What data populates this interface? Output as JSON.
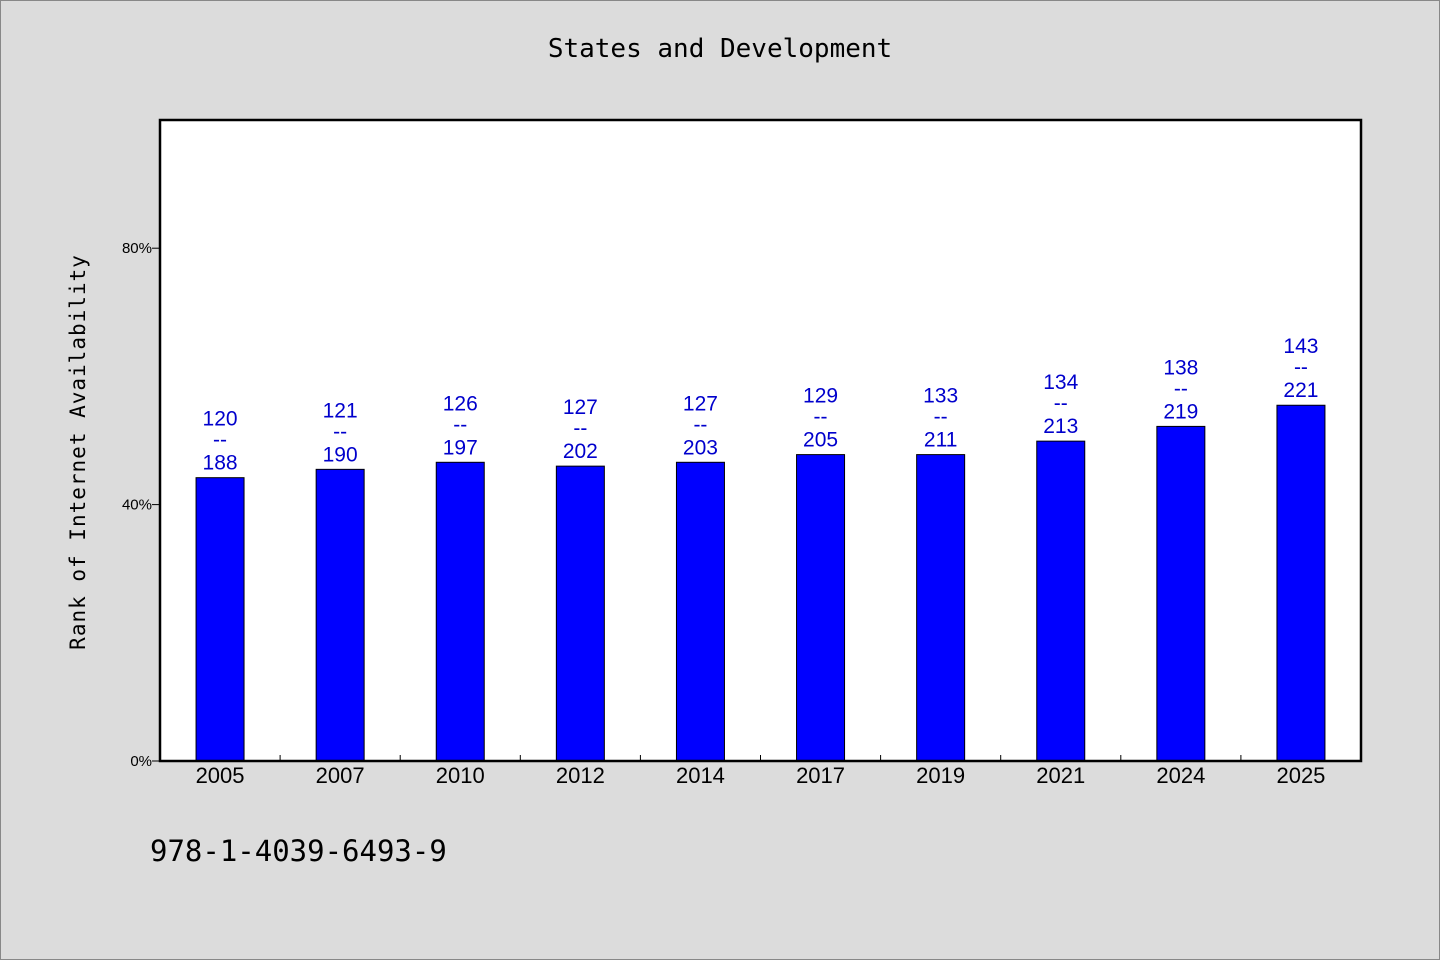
{
  "chart_data": {
    "type": "bar",
    "title": "States and Development",
    "xlabel": "",
    "ylabel": "Rank of Internet Availability",
    "ylim": [
      0,
      100
    ],
    "yticks": [
      0,
      40,
      80
    ],
    "ytick_labels": [
      "0%",
      "40%",
      "80%"
    ],
    "categories": [
      "2005",
      "2007",
      "2010",
      "2012",
      "2014",
      "2017",
      "2019",
      "2021",
      "2024",
      "2025"
    ],
    "values": [
      44.2,
      45.5,
      46.6,
      46.0,
      46.6,
      47.8,
      47.8,
      49.9,
      52.2,
      55.5
    ],
    "data_labels": [
      {
        "top": "120",
        "mid": "--",
        "bottom": "188"
      },
      {
        "top": "121",
        "mid": "--",
        "bottom": "190"
      },
      {
        "top": "126",
        "mid": "--",
        "bottom": "197"
      },
      {
        "top": "127",
        "mid": "--",
        "bottom": "202"
      },
      {
        "top": "127",
        "mid": "--",
        "bottom": "203"
      },
      {
        "top": "129",
        "mid": "--",
        "bottom": "205"
      },
      {
        "top": "133",
        "mid": "--",
        "bottom": "211"
      },
      {
        "top": "134",
        "mid": "--",
        "bottom": "213"
      },
      {
        "top": "138",
        "mid": "--",
        "bottom": "219"
      },
      {
        "top": "143",
        "mid": "--",
        "bottom": "221"
      }
    ],
    "bar_color": "#0000ff",
    "label_color": "#0000cc",
    "grid": false,
    "legend": "none"
  },
  "footer": {
    "isbn": "978-1-4039-6493-9"
  }
}
